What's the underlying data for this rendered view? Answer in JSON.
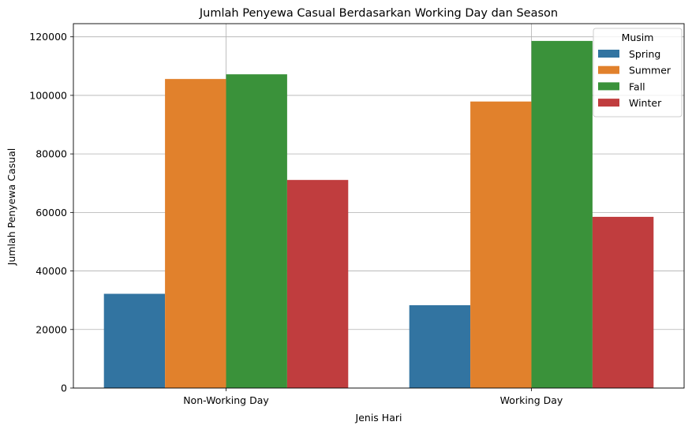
{
  "chart_data": {
    "type": "bar",
    "title": "Jumlah Penyewa Casual Berdasarkan Working Day dan Season",
    "xlabel": "Jenis Hari",
    "ylabel": "Jumlah Penyewa Casual",
    "categories": [
      "Non-Working Day",
      "Working Day"
    ],
    "series": [
      {
        "name": "Spring",
        "color": "#3274a1",
        "values": [
          32200,
          28300
        ]
      },
      {
        "name": "Summer",
        "color": "#e1812c",
        "values": [
          105600,
          97900
        ]
      },
      {
        "name": "Fall",
        "color": "#3a923a",
        "values": [
          107200,
          118600
        ]
      },
      {
        "name": "Winter",
        "color": "#c03d3e",
        "values": [
          71100,
          58500
        ]
      }
    ],
    "ylim": [
      0,
      124500
    ],
    "yticks": [
      0,
      20000,
      40000,
      60000,
      80000,
      100000,
      120000
    ],
    "grid": true,
    "legend": {
      "title": "Musim",
      "placement": "top-right"
    }
  }
}
